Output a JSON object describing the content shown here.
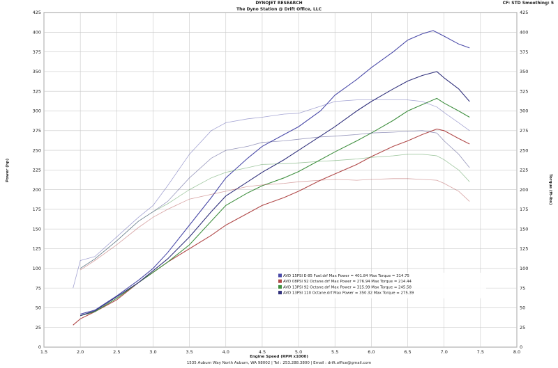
{
  "header": {
    "company": "DYNOJET RESEARCH",
    "shop": "The Dyno Station @ Drift Office, LLC",
    "settings": "CF: STD  Smoothing: 5"
  },
  "footer": {
    "address": "1535 Auburn Way North Auburn, WA 98002 | Tel : 253.288.3800 | Email : drift.office@gmail.com"
  },
  "colors": {
    "blue": "#4a4aa8",
    "red": "#b04848",
    "green": "#3f8f3f",
    "navy": "#31317c"
  },
  "chart_data": {
    "type": "line",
    "xlabel": "Engine Speed (RPM x1000)",
    "ylabel": "Power (hp)",
    "ylabel_right": "Torque (ft-lbs)",
    "xlim": [
      1.5,
      8.0
    ],
    "ylim": [
      0,
      425
    ],
    "x_ticks": [
      "1.5",
      "2.0",
      "2.5",
      "3.0",
      "3.5",
      "4.0",
      "4.5",
      "5.0",
      "5.5",
      "6.0",
      "6.5",
      "7.0",
      "7.5",
      "8.0"
    ],
    "y_ticks": [
      "0",
      "25",
      "50",
      "75",
      "100",
      "125",
      "150",
      "175",
      "200",
      "225",
      "250",
      "275",
      "300",
      "325",
      "350",
      "375",
      "400",
      "425"
    ],
    "grid": true,
    "legend_position": "lower-right",
    "legend": [
      "AVD 15PSI E-85 Fuel.drf Max Power = 401.84    Max Torque = 314.75",
      "AVD 08PSI 92 Octane.drf Max Power = 276.94    Max Torque = 214.44",
      "AVD 13PSI 92 Octane.drf Max Power = 315.99    Max Torque = 245.58",
      "AVD 13PSI 110 Octane.drf Max Power = 350.32    Max Torque = 275.39"
    ],
    "series": [
      {
        "kind": "power",
        "color": "blue",
        "x": [
          2.0,
          2.2,
          2.5,
          2.8,
          3.0,
          3.2,
          3.5,
          3.8,
          4.0,
          4.3,
          4.5,
          4.8,
          5.0,
          5.3,
          5.5,
          5.8,
          6.0,
          6.3,
          6.5,
          6.7,
          6.85,
          7.0,
          7.2,
          7.35
        ],
        "y": [
          42,
          47,
          65,
          85,
          100,
          120,
          155,
          190,
          215,
          240,
          255,
          270,
          280,
          300,
          320,
          340,
          355,
          375,
          390,
          398,
          402,
          395,
          385,
          380
        ]
      },
      {
        "kind": "power",
        "color": "red",
        "x": [
          1.9,
          2.0,
          2.2,
          2.5,
          2.8,
          3.0,
          3.2,
          3.5,
          3.8,
          4.0,
          4.3,
          4.5,
          4.8,
          5.0,
          5.3,
          5.5,
          5.8,
          6.0,
          6.3,
          6.5,
          6.7,
          6.9,
          7.0,
          7.2,
          7.35
        ],
        "y": [
          28,
          36,
          45,
          60,
          82,
          95,
          108,
          125,
          142,
          155,
          170,
          180,
          190,
          198,
          212,
          220,
          232,
          242,
          255,
          262,
          270,
          277,
          275,
          265,
          258
        ]
      },
      {
        "kind": "power",
        "color": "green",
        "x": [
          2.0,
          2.2,
          2.5,
          2.8,
          3.0,
          3.2,
          3.5,
          3.8,
          4.0,
          4.3,
          4.5,
          4.8,
          5.0,
          5.3,
          5.5,
          5.8,
          6.0,
          6.3,
          6.5,
          6.7,
          6.9,
          7.0,
          7.2,
          7.35
        ],
        "y": [
          40,
          45,
          62,
          82,
          95,
          108,
          130,
          160,
          180,
          196,
          205,
          215,
          223,
          238,
          248,
          262,
          272,
          288,
          300,
          308,
          316,
          310,
          300,
          292
        ]
      },
      {
        "kind": "power",
        "color": "navy",
        "x": [
          2.0,
          2.2,
          2.5,
          2.8,
          3.0,
          3.2,
          3.5,
          3.8,
          4.0,
          4.3,
          4.5,
          4.8,
          5.0,
          5.3,
          5.5,
          5.8,
          6.0,
          6.3,
          6.5,
          6.7,
          6.9,
          7.0,
          7.2,
          7.35
        ],
        "y": [
          40,
          46,
          64,
          82,
          97,
          112,
          140,
          172,
          192,
          210,
          222,
          238,
          250,
          268,
          280,
          300,
          312,
          328,
          338,
          345,
          350,
          342,
          328,
          312
        ]
      },
      {
        "kind": "torque",
        "color": "blue",
        "x": [
          1.9,
          2.0,
          2.2,
          2.5,
          2.8,
          3.0,
          3.2,
          3.5,
          3.8,
          4.0,
          4.3,
          4.5,
          4.8,
          5.0,
          5.3,
          5.5,
          5.8,
          6.0,
          6.3,
          6.5,
          6.7,
          6.9,
          7.0,
          7.2,
          7.35
        ],
        "y": [
          75,
          110,
          115,
          140,
          165,
          180,
          205,
          245,
          275,
          285,
          290,
          292,
          296,
          297,
          306,
          312,
          314,
          314,
          314,
          314,
          312,
          305,
          298,
          285,
          275
        ]
      },
      {
        "kind": "torque",
        "color": "red",
        "x": [
          2.0,
          2.2,
          2.5,
          2.8,
          3.0,
          3.2,
          3.5,
          3.8,
          4.0,
          4.3,
          4.5,
          4.8,
          5.0,
          5.3,
          5.5,
          5.8,
          6.0,
          6.3,
          6.5,
          6.7,
          6.9,
          7.0,
          7.2,
          7.35
        ],
        "y": [
          98,
          110,
          130,
          152,
          165,
          175,
          188,
          194,
          198,
          204,
          206,
          208,
          210,
          212,
          213,
          212,
          213,
          214,
          214,
          213,
          212,
          208,
          198,
          185
        ]
      },
      {
        "kind": "torque",
        "color": "green",
        "x": [
          2.0,
          2.2,
          2.5,
          2.8,
          3.0,
          3.2,
          3.5,
          3.8,
          4.0,
          4.3,
          4.5,
          4.8,
          5.0,
          5.3,
          5.5,
          5.8,
          6.0,
          6.3,
          6.5,
          6.7,
          6.9,
          7.0,
          7.2,
          7.35
        ],
        "y": [
          100,
          112,
          135,
          160,
          172,
          182,
          200,
          215,
          222,
          228,
          232,
          233,
          234,
          236,
          237,
          239,
          241,
          243,
          245,
          245,
          243,
          238,
          225,
          210
        ]
      },
      {
        "kind": "torque",
        "color": "navy",
        "x": [
          2.0,
          2.2,
          2.5,
          2.8,
          3.0,
          3.2,
          3.5,
          3.8,
          4.0,
          4.3,
          4.5,
          4.8,
          5.0,
          5.3,
          5.5,
          5.8,
          6.0,
          6.3,
          6.5,
          6.7,
          6.9,
          7.0,
          7.2,
          7.35
        ],
        "y": [
          100,
          112,
          135,
          160,
          172,
          185,
          215,
          240,
          250,
          255,
          260,
          262,
          264,
          267,
          268,
          270,
          272,
          273,
          274,
          275,
          272,
          262,
          245,
          228
        ]
      }
    ]
  }
}
